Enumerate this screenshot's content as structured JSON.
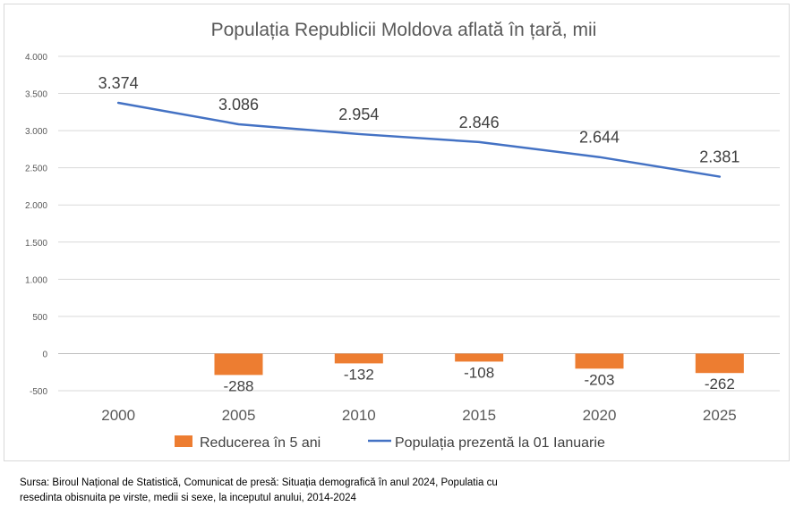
{
  "chart_data": {
    "type": "bar+line",
    "title": "Populația Republicii Moldova aflată în țară, mii",
    "categories": [
      "2000",
      "2005",
      "2010",
      "2015",
      "2020",
      "2025"
    ],
    "series": [
      {
        "name": "Reducerea în 5 ani",
        "type": "bar",
        "color": "#ED7D31",
        "values": [
          null,
          -288,
          -132,
          -108,
          -203,
          -262
        ],
        "labels": [
          "",
          "-288",
          "-132",
          "-108",
          "-203",
          "-262"
        ]
      },
      {
        "name": "Populația prezentă la 01 Ianuarie",
        "type": "line",
        "color": "#4472C4",
        "values": [
          3374,
          3086,
          2954,
          2846,
          2644,
          2381
        ],
        "labels": [
          "3.374",
          "3.086",
          "2.954",
          "2.846",
          "2.644",
          "2.381"
        ]
      }
    ],
    "ylim": [
      -500,
      4000
    ],
    "yticks": [
      -500,
      0,
      500,
      1000,
      1500,
      2000,
      2500,
      3000,
      3500,
      4000
    ],
    "ytick_labels": [
      "-500",
      "0",
      "500",
      "1.000",
      "1.500",
      "2.000",
      "2.500",
      "3.000",
      "3.500",
      "4.000"
    ],
    "grid": true,
    "legend": "bottom"
  },
  "source": {
    "line1": "Sursa: Biroul Național de Statistică, Comunicat de presă: Situația demografică în anul 2024,  Populatia cu",
    "line2": "resedinta obisnuita pe virste, medii si sexe, la inceputul anului, 2014-2024"
  }
}
